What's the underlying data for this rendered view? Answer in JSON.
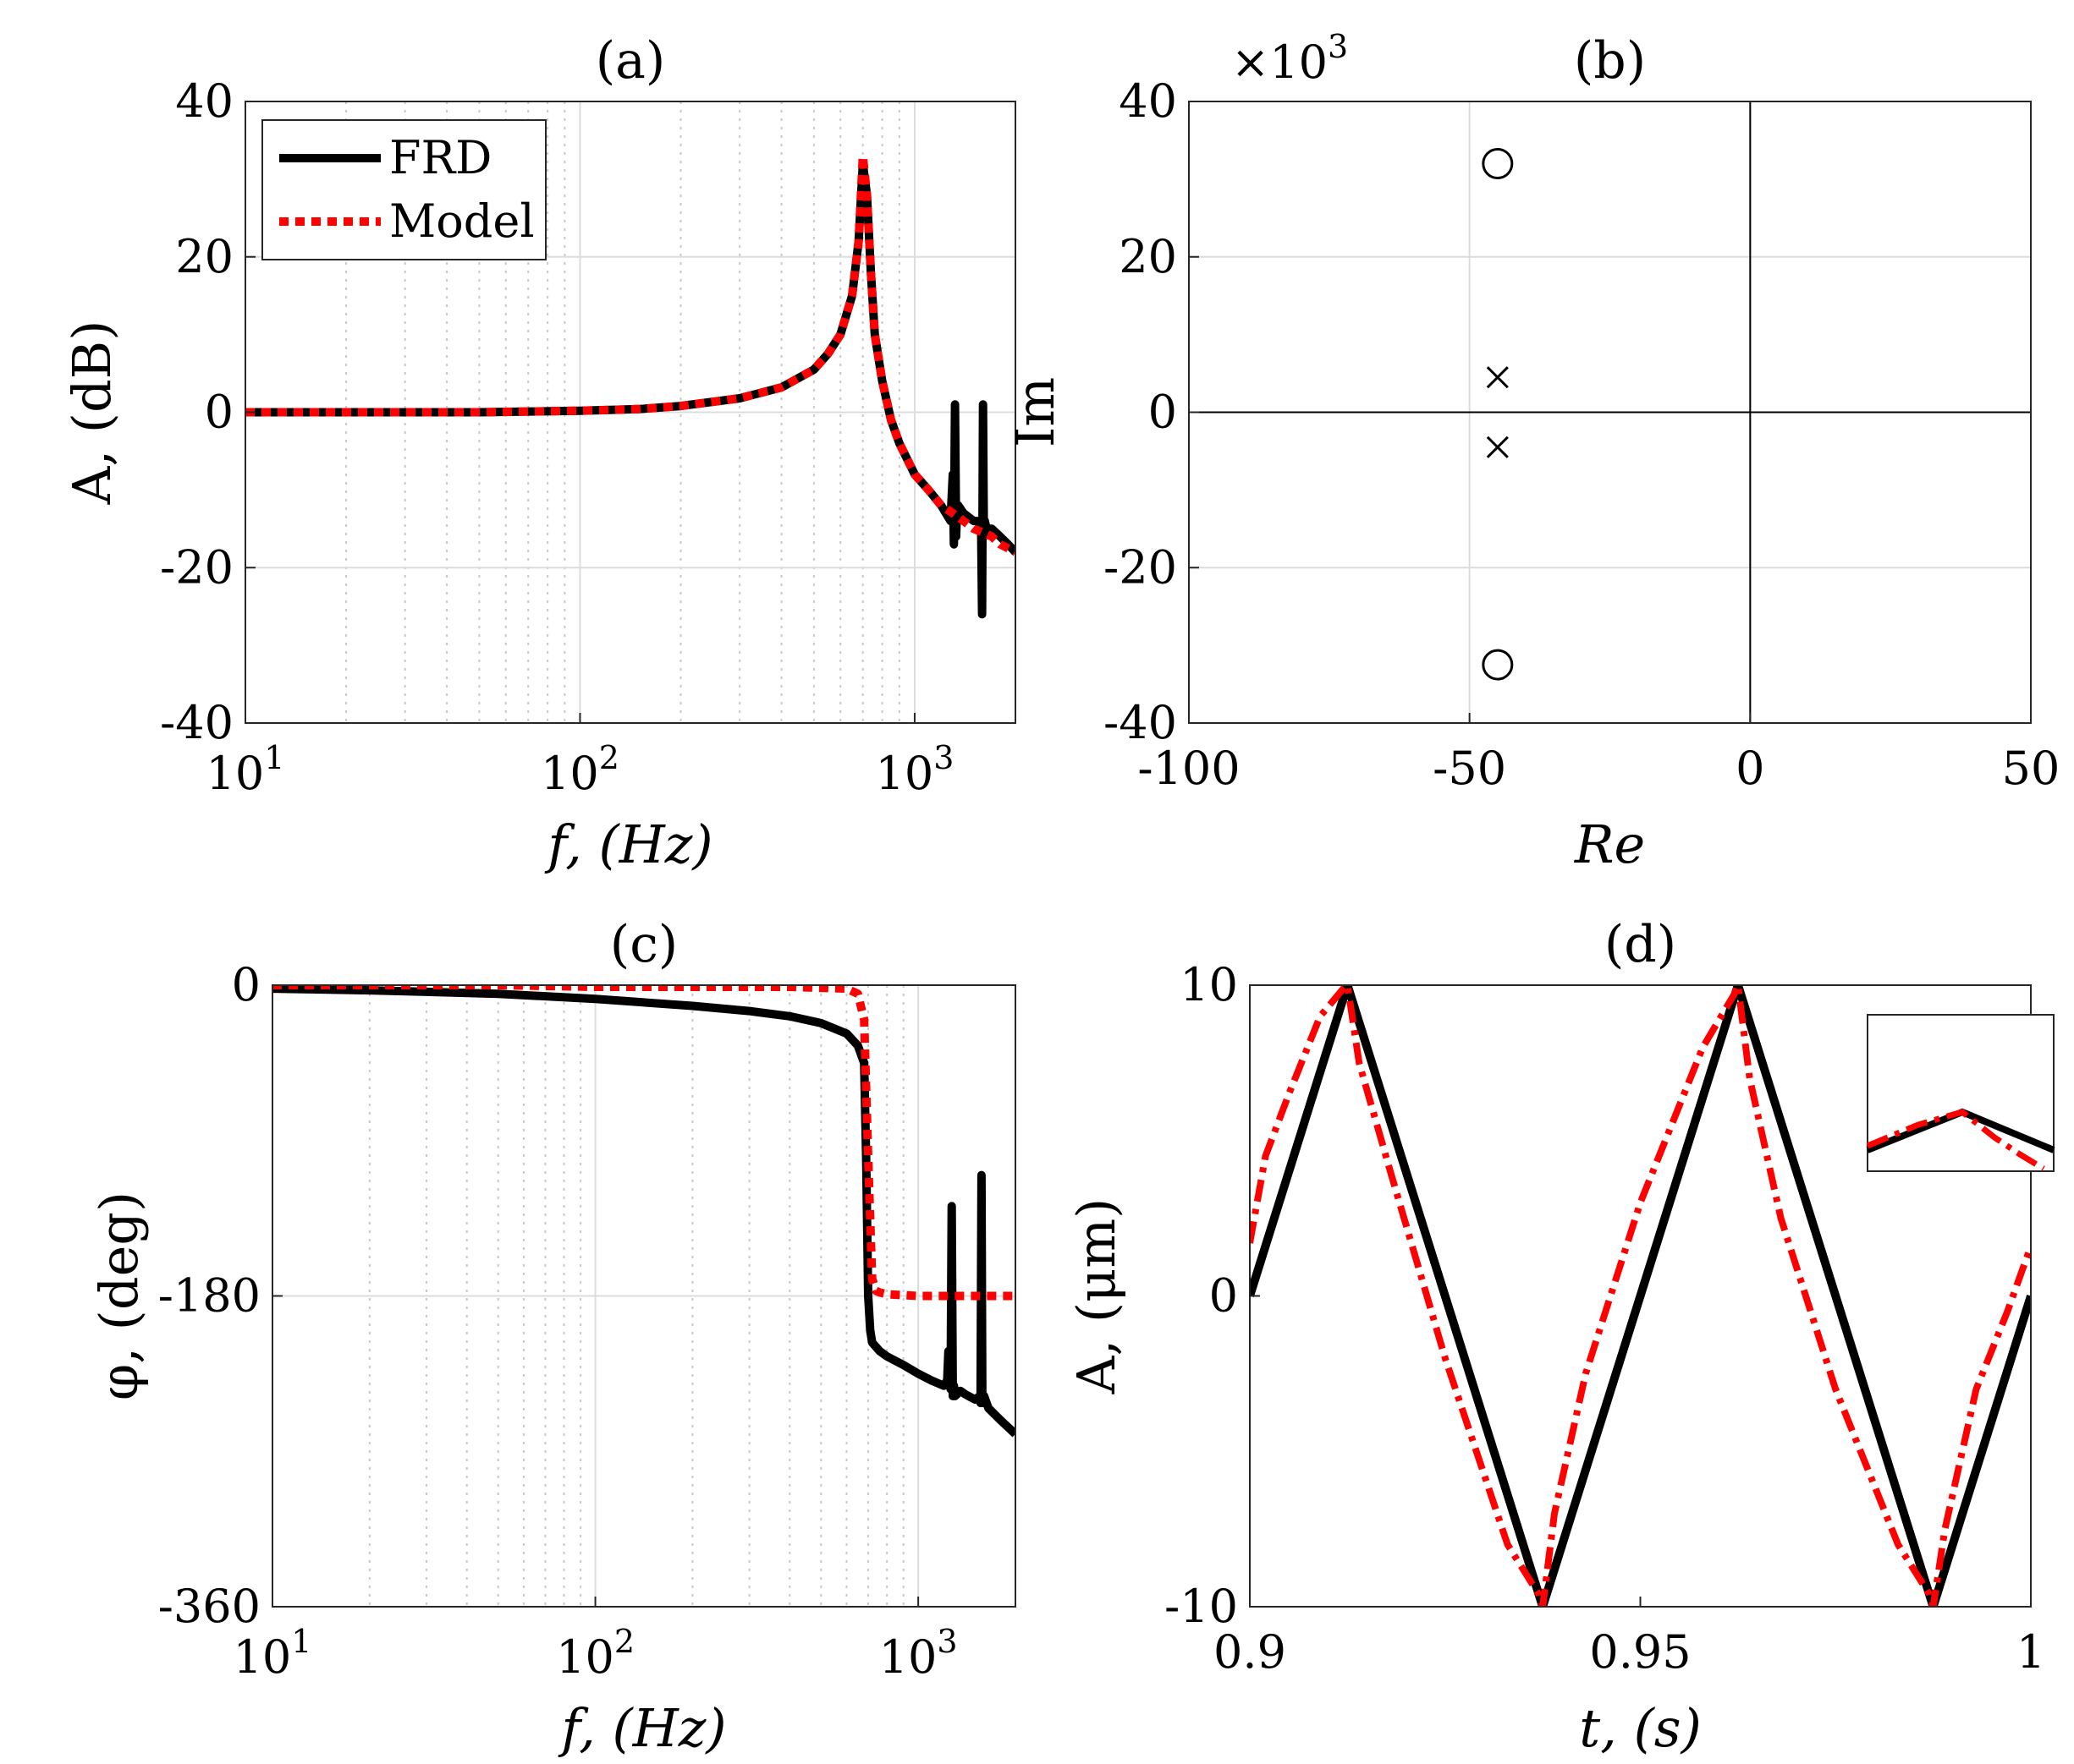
{
  "chart_data": [
    {
      "panel": "a",
      "type": "line",
      "title": "(a)",
      "xlabel": "f, (Hz)",
      "ylabel": "A, (dB)",
      "xscale": "log",
      "xlim": [
        10,
        2000
      ],
      "ylim": [
        -40,
        40
      ],
      "xticks": [
        10,
        100,
        1000
      ],
      "xtick_labels": [
        {
          "base": "10",
          "exp": "1"
        },
        {
          "base": "10",
          "exp": "2"
        },
        {
          "base": "10",
          "exp": "3"
        }
      ],
      "yticks": [
        -40,
        -20,
        0,
        20,
        40
      ],
      "ytick_labels": [
        "-40",
        "-20",
        "0",
        "20",
        "40"
      ],
      "grid": true,
      "legend": {
        "position": "top-left",
        "entries": [
          "FRD",
          "Model"
        ]
      },
      "series": [
        {
          "name": "FRD",
          "color": "#000000",
          "style": "solid",
          "x": [
            10,
            20,
            50,
            100,
            150,
            200,
            300,
            400,
            500,
            550,
            600,
            650,
            680,
            700,
            720,
            740,
            760,
            800,
            850,
            900,
            1000,
            1100,
            1200,
            1280,
            1300,
            1310,
            1320,
            1330,
            1340,
            1350,
            1400,
            1500,
            1550,
            1580,
            1590,
            1600,
            1610,
            1620,
            1640,
            1700,
            1800,
            1900,
            2000
          ],
          "y": [
            0,
            0,
            0,
            0.2,
            0.4,
            0.8,
            1.8,
            3.2,
            5.5,
            7.5,
            10,
            15,
            22,
            32,
            28,
            18,
            10,
            4,
            -1,
            -4,
            -8,
            -10,
            -12,
            -14,
            -8,
            -17,
            1,
            -16,
            -12,
            -12,
            -13,
            -14,
            -14,
            -15,
            -26,
            1,
            -16,
            -14,
            -15,
            -15,
            -16,
            -17,
            -18
          ]
        },
        {
          "name": "Model",
          "color": "#ff0000",
          "style": "dotted",
          "x": [
            10,
            20,
            50,
            100,
            150,
            200,
            300,
            400,
            500,
            550,
            600,
            650,
            680,
            700,
            720,
            740,
            760,
            800,
            850,
            900,
            1000,
            1100,
            1200,
            1300,
            1400,
            1500,
            1600,
            1700,
            1800,
            1900,
            2000
          ],
          "y": [
            0,
            0,
            0,
            0.2,
            0.4,
            0.8,
            1.8,
            3.2,
            5.5,
            7.5,
            10,
            15,
            22,
            33,
            28,
            18,
            10,
            4,
            -1,
            -4,
            -8,
            -10,
            -12,
            -13,
            -14,
            -15,
            -15.5,
            -16,
            -17,
            -17.5,
            -18
          ]
        }
      ]
    },
    {
      "panel": "b",
      "type": "scatter",
      "title": "(b)",
      "xlabel": "Re",
      "ylabel": "Im",
      "y_multiplier": "×10",
      "y_multiplier_exp": "3",
      "xlim": [
        -100,
        50
      ],
      "ylim": [
        -40,
        40
      ],
      "xticks": [
        -100,
        -50,
        0,
        50
      ],
      "xtick_labels": [
        "-100",
        "-50",
        "0",
        "50"
      ],
      "yticks": [
        -40,
        -20,
        0,
        20,
        40
      ],
      "ytick_labels": [
        "-40",
        "-20",
        "0",
        "20",
        "40"
      ],
      "grid": true,
      "series": [
        {
          "name": "zeros",
          "marker": "o",
          "color": "#000000",
          "x": [
            -45,
            -45
          ],
          "y": [
            32,
            -32.5
          ]
        },
        {
          "name": "poles",
          "marker": "x",
          "color": "#000000",
          "x": [
            -45,
            -45
          ],
          "y": [
            4.5,
            -4.5
          ]
        }
      ]
    },
    {
      "panel": "c",
      "type": "line",
      "title": "(c)",
      "xlabel": "f, (Hz)",
      "ylabel": "φ, (deg)",
      "xscale": "log",
      "xlim": [
        10,
        2000
      ],
      "ylim": [
        -360,
        0
      ],
      "xticks": [
        10,
        100,
        1000
      ],
      "xtick_labels": [
        {
          "base": "10",
          "exp": "1"
        },
        {
          "base": "10",
          "exp": "2"
        },
        {
          "base": "10",
          "exp": "3"
        }
      ],
      "yticks": [
        -360,
        -180,
        0
      ],
      "ytick_labels": [
        "-360",
        "-180",
        "0"
      ],
      "grid": true,
      "series": [
        {
          "name": "FRD",
          "color": "#000000",
          "style": "solid",
          "x": [
            10,
            20,
            50,
            100,
            200,
            300,
            400,
            500,
            600,
            650,
            680,
            690,
            700,
            710,
            720,
            760,
            800,
            900,
            1000,
            1100,
            1200,
            1230,
            1240,
            1250,
            1260,
            1270,
            1280,
            1290,
            1300,
            1350,
            1400,
            1500,
            1550,
            1560,
            1570,
            1580,
            1590,
            1600,
            1650,
            1800,
            2000
          ],
          "y": [
            -2,
            -3,
            -5,
            -8,
            -12,
            -15,
            -18,
            -22,
            -28,
            -35,
            -45,
            -100,
            -180,
            -200,
            -207,
            -212,
            -215,
            -220,
            -225,
            -229,
            -232,
            -229,
            -212,
            -229,
            -234,
            -128,
            -238,
            -232,
            -238,
            -235,
            -237,
            -240,
            -238,
            -242,
            -110,
            -242,
            -240,
            -238,
            -245,
            -252,
            -260
          ]
        },
        {
          "name": "Model",
          "color": "#ff0000",
          "style": "dotted",
          "x": [
            10,
            50,
            100,
            200,
            400,
            600,
            650,
            680,
            700,
            720,
            740,
            760,
            800,
            1000,
            1500,
            2000
          ],
          "y": [
            0,
            0,
            -1,
            -1,
            -1,
            -2,
            -5,
            -20,
            -100,
            -170,
            -177,
            -178,
            -179,
            -180,
            -180,
            -180
          ]
        }
      ]
    },
    {
      "panel": "d",
      "type": "line",
      "title": "(d)",
      "xlabel": "t, (s)",
      "ylabel": "A, (μm)",
      "xlim": [
        0.9,
        1.0
      ],
      "ylim": [
        -10,
        10
      ],
      "xticks": [
        0.9,
        0.95,
        1.0
      ],
      "xtick_labels": [
        "0.9",
        "0.95",
        "1"
      ],
      "yticks": [
        -10,
        0,
        10
      ],
      "ytick_labels": [
        "-10",
        "0",
        "10"
      ],
      "grid": false,
      "inset": {
        "position": "top-right"
      },
      "series": [
        {
          "name": "FRD",
          "color": "#000000",
          "style": "solid",
          "x": [
            0.9,
            0.9125,
            0.9375,
            0.9625,
            0.9875,
            1.0
          ],
          "y": [
            0,
            10,
            -10,
            10,
            -10,
            0
          ]
        },
        {
          "name": "Model",
          "color": "#ff0000",
          "style": "dashdot",
          "x": [
            0.9,
            0.902,
            0.905,
            0.909,
            0.912,
            0.9125,
            0.914,
            0.918,
            0.925,
            0.933,
            0.937,
            0.9375,
            0.939,
            0.943,
            0.95,
            0.958,
            0.962,
            0.9625,
            0.964,
            0.968,
            0.975,
            0.983,
            0.987,
            0.9875,
            0.989,
            0.993,
            0.997,
            1.0
          ],
          "y": [
            1.7,
            4.5,
            6.5,
            9,
            9.9,
            10,
            7.5,
            4,
            -2,
            -8,
            -9.6,
            -10,
            -7,
            -2.5,
            3,
            8,
            9.7,
            10,
            7,
            2.5,
            -3,
            -8,
            -9.6,
            -10,
            -7.5,
            -3,
            -0.5,
            1.6
          ]
        }
      ]
    }
  ]
}
